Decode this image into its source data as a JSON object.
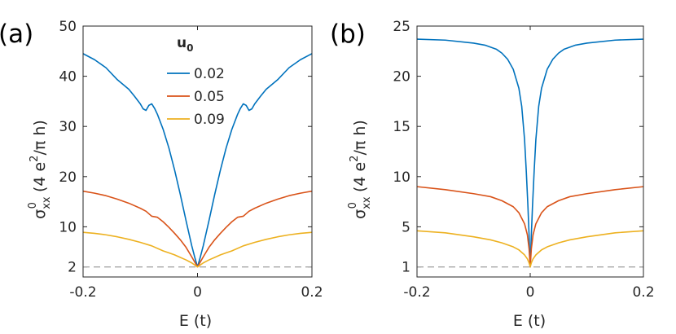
{
  "chart_data": [
    {
      "type": "line",
      "panel_label": "(a)",
      "xlabel": "E (t)",
      "ylabel": {
        "main": "σ",
        "sup": "0",
        "sub": "xx",
        "units": "(4 e",
        "units_sup": "2",
        "units_tail": "/π h)"
      },
      "xlim": [
        -0.2,
        0.2
      ],
      "ylim": [
        0,
        50
      ],
      "xticks": [
        -0.2,
        0,
        0.2
      ],
      "xtick_labels": [
        "-0.2",
        "0",
        "0.2"
      ],
      "yticks": [
        2,
        10,
        20,
        30,
        40,
        50
      ],
      "ytick_labels": [
        "2",
        "10",
        "20",
        "30",
        "40",
        "50"
      ],
      "reference_line": {
        "y": 2,
        "style": "dashed",
        "color": "#a6a6a6"
      },
      "legend": {
        "title": "u",
        "title_sub": "0",
        "placement": "top-center"
      },
      "series": [
        {
          "name": "0.02",
          "color": "#0072BD",
          "x": [
            -0.2,
            -0.18,
            -0.16,
            -0.14,
            -0.12,
            -0.11,
            -0.1,
            -0.095,
            -0.09,
            -0.085,
            -0.08,
            -0.075,
            -0.07,
            -0.06,
            -0.05,
            -0.04,
            -0.03,
            -0.02,
            -0.01,
            -0.005,
            0,
            0.005,
            0.01,
            0.02,
            0.03,
            0.04,
            0.05,
            0.06,
            0.07,
            0.075,
            0.08,
            0.085,
            0.09,
            0.095,
            0.1,
            0.11,
            0.12,
            0.14,
            0.16,
            0.18,
            0.2
          ],
          "y": [
            44.5,
            43.3,
            41.7,
            39.3,
            37.4,
            36.0,
            34.5,
            33.5,
            33.2,
            34.2,
            34.5,
            33.6,
            32.4,
            29.4,
            25.7,
            21.3,
            16.4,
            11.2,
            6.2,
            4.0,
            2.0,
            4.0,
            6.2,
            11.2,
            16.4,
            21.3,
            25.7,
            29.4,
            32.4,
            33.6,
            34.5,
            34.2,
            33.2,
            33.5,
            34.5,
            36.0,
            37.4,
            39.3,
            41.7,
            43.3,
            44.5
          ]
        },
        {
          "name": "0.05",
          "color": "#D95319",
          "x": [
            -0.2,
            -0.18,
            -0.16,
            -0.14,
            -0.12,
            -0.1,
            -0.09,
            -0.08,
            -0.075,
            -0.07,
            -0.06,
            -0.05,
            -0.04,
            -0.03,
            -0.02,
            -0.01,
            0,
            0.01,
            0.02,
            0.03,
            0.04,
            0.05,
            0.06,
            0.07,
            0.075,
            0.08,
            0.09,
            0.1,
            0.12,
            0.14,
            0.16,
            0.18,
            0.2
          ],
          "y": [
            17.1,
            16.7,
            16.2,
            15.5,
            14.7,
            13.7,
            13.1,
            12.1,
            12.0,
            11.9,
            11.0,
            9.9,
            8.7,
            7.4,
            5.9,
            4.0,
            2.0,
            4.0,
            5.9,
            7.4,
            8.7,
            9.9,
            11.0,
            11.9,
            12.0,
            12.1,
            13.1,
            13.7,
            14.7,
            15.5,
            16.2,
            16.7,
            17.1
          ]
        },
        {
          "name": "0.09",
          "color": "#EDB120",
          "x": [
            -0.2,
            -0.18,
            -0.16,
            -0.14,
            -0.12,
            -0.1,
            -0.08,
            -0.06,
            -0.05,
            -0.04,
            -0.03,
            -0.02,
            -0.01,
            0,
            0.01,
            0.02,
            0.03,
            0.04,
            0.05,
            0.06,
            0.08,
            0.1,
            0.12,
            0.14,
            0.16,
            0.18,
            0.2
          ],
          "y": [
            8.9,
            8.7,
            8.4,
            8.0,
            7.5,
            6.9,
            6.2,
            5.2,
            4.8,
            4.4,
            3.9,
            3.4,
            2.8,
            2.0,
            2.8,
            3.4,
            3.9,
            4.4,
            4.8,
            5.2,
            6.2,
            6.9,
            7.5,
            8.0,
            8.4,
            8.7,
            8.9
          ]
        }
      ]
    },
    {
      "type": "line",
      "panel_label": "(b)",
      "xlabel": "E (t)",
      "ylabel": {
        "main": "σ",
        "sup": "0",
        "sub": "xx",
        "units": "(4 e",
        "units_sup": "2",
        "units_tail": "/π h)"
      },
      "xlim": [
        -0.2,
        0.2
      ],
      "ylim": [
        0,
        25
      ],
      "xticks": [
        -0.2,
        0,
        0.2
      ],
      "xtick_labels": [
        "-0.2",
        "0",
        "0.2"
      ],
      "yticks": [
        1,
        5,
        10,
        15,
        20,
        25
      ],
      "ytick_labels": [
        "1",
        "5",
        "10",
        "15",
        "20",
        "25"
      ],
      "reference_line": {
        "y": 1,
        "style": "dashed",
        "color": "#a6a6a6"
      },
      "series": [
        {
          "name": "0.02",
          "color": "#0072BD",
          "x": [
            -0.2,
            -0.15,
            -0.1,
            -0.08,
            -0.06,
            -0.05,
            -0.04,
            -0.03,
            -0.02,
            -0.015,
            -0.01,
            -0.007,
            -0.004,
            -0.002,
            -0.001,
            0,
            0.001,
            0.002,
            0.004,
            0.007,
            0.01,
            0.015,
            0.02,
            0.03,
            0.04,
            0.05,
            0.06,
            0.08,
            0.1,
            0.15,
            0.2
          ],
          "y": [
            23.7,
            23.6,
            23.3,
            23.1,
            22.7,
            22.3,
            21.7,
            20.7,
            18.8,
            17.0,
            13.7,
            10.6,
            7.0,
            4.2,
            2.5,
            1.0,
            2.5,
            4.2,
            7.0,
            10.6,
            13.7,
            17.0,
            18.8,
            20.7,
            21.7,
            22.3,
            22.7,
            23.1,
            23.3,
            23.6,
            23.7
          ]
        },
        {
          "name": "0.05",
          "color": "#D95319",
          "x": [
            -0.2,
            -0.15,
            -0.1,
            -0.07,
            -0.05,
            -0.03,
            -0.02,
            -0.01,
            -0.005,
            -0.002,
            0,
            0.002,
            0.005,
            0.01,
            0.02,
            0.03,
            0.05,
            0.07,
            0.1,
            0.15,
            0.2
          ],
          "y": [
            9.0,
            8.7,
            8.3,
            8.0,
            7.6,
            7.0,
            6.4,
            5.3,
            4.2,
            2.8,
            1.0,
            2.8,
            4.2,
            5.3,
            6.4,
            7.0,
            7.6,
            8.0,
            8.3,
            8.7,
            9.0
          ],
          "legend_hidden": true
        },
        {
          "name": "0.09",
          "color": "#EDB120",
          "x": [
            -0.2,
            -0.15,
            -0.1,
            -0.07,
            -0.05,
            -0.03,
            -0.02,
            -0.01,
            -0.005,
            -0.002,
            0,
            0.002,
            0.005,
            0.01,
            0.02,
            0.03,
            0.05,
            0.07,
            0.1,
            0.15,
            0.2
          ],
          "y": [
            4.6,
            4.4,
            4.0,
            3.7,
            3.4,
            3.0,
            2.7,
            2.2,
            1.8,
            1.4,
            1.0,
            1.4,
            1.8,
            2.2,
            2.7,
            3.0,
            3.4,
            3.7,
            4.0,
            4.4,
            4.6
          ]
        }
      ]
    }
  ]
}
